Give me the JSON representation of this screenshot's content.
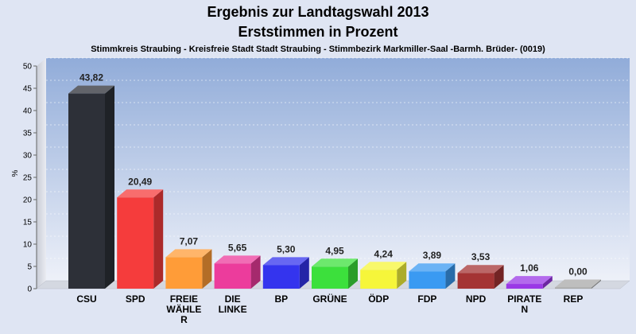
{
  "chart_data": {
    "type": "bar",
    "title_line1": "Ergebnis zur Landtagswahl 2013",
    "title_line2": "Erststimmen in Prozent",
    "subtitle": "Stimmkreis Straubing - Kreisfreie Stadt Stadt Straubing - Stimmbezirk Markmiller-Saal -Barmh. Brüder- (0019)",
    "ylabel": "%",
    "ylim": [
      0,
      50
    ],
    "yticks": [
      "0",
      "5",
      "10",
      "15",
      "20",
      "25",
      "30",
      "35",
      "40",
      "45",
      "50"
    ],
    "categories": [
      [
        "CSU"
      ],
      [
        "SPD"
      ],
      [
        "FREIE",
        "WÄHLE",
        "R"
      ],
      [
        "DIE",
        "LINKE"
      ],
      [
        "BP"
      ],
      [
        "GRÜNE"
      ],
      [
        "ÖDP"
      ],
      [
        "FDP"
      ],
      [
        "NPD"
      ],
      [
        "PIRATE",
        "N"
      ],
      [
        "REP"
      ]
    ],
    "values": [
      43.82,
      20.49,
      7.07,
      5.65,
      5.3,
      4.95,
      4.24,
      3.89,
      3.53,
      1.06,
      0.0
    ],
    "value_labels": [
      "43,82",
      "20,49",
      "7,07",
      "5,65",
      "5,30",
      "4,95",
      "4,24",
      "3,89",
      "3,53",
      "1,06",
      "0,00"
    ],
    "colors": [
      "#2d3038",
      "#f53c3c",
      "#ff9c38",
      "#ec3c9c",
      "#3434ee",
      "#3ce03c",
      "#f6f63a",
      "#3a9af2",
      "#a43434",
      "#9a38e6",
      "#a8a8a8"
    ],
    "grid": true
  }
}
